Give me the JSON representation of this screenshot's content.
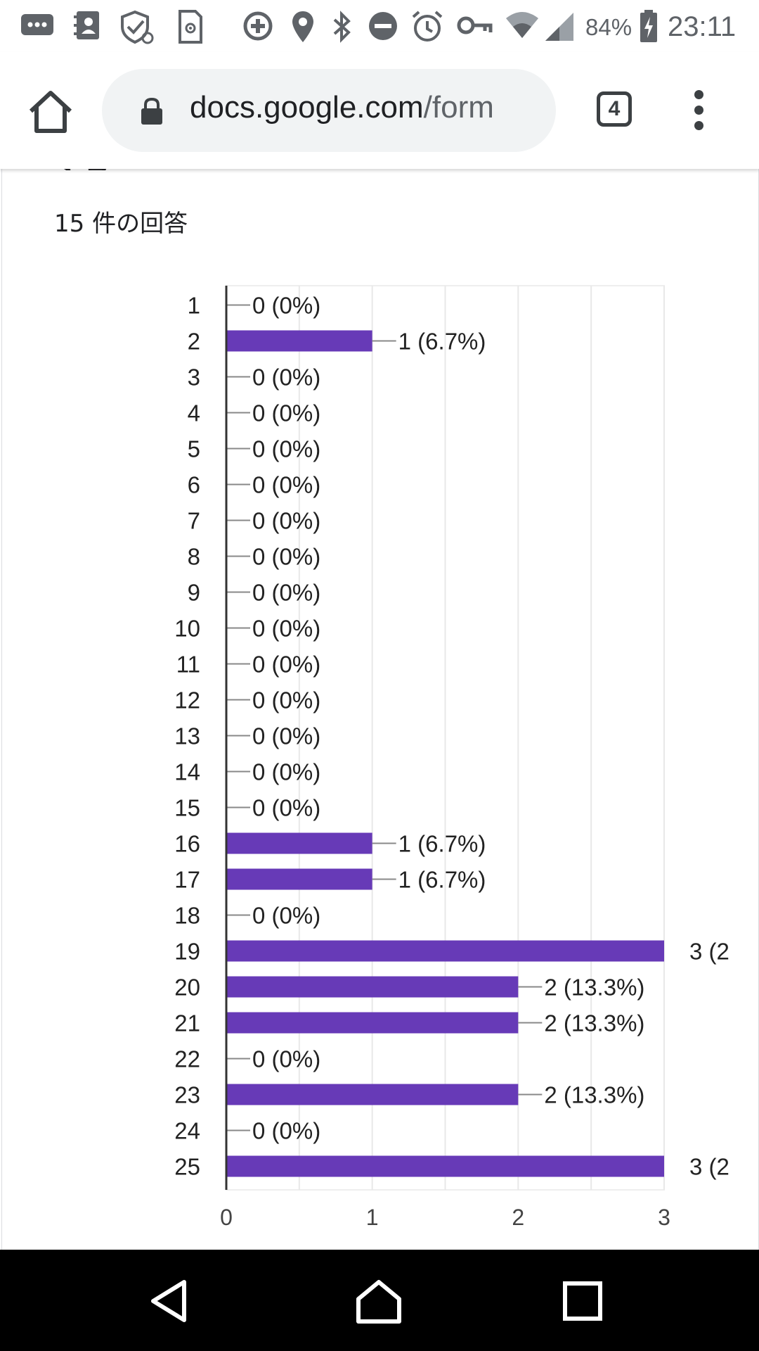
{
  "status_bar": {
    "battery": "84%",
    "time": "23:11",
    "icons": [
      "more-messages-icon",
      "contacts-icon",
      "shield-sync-icon",
      "sim-settings-icon",
      "data-saver-icon",
      "location-icon",
      "bluetooth-icon",
      "do-not-disturb-icon",
      "alarm-icon",
      "vpn-key-icon",
      "wifi-icon",
      "signal-icon",
      "battery-charging-icon"
    ]
  },
  "toolbar": {
    "url_domain": "docs.google.com",
    "url_path": "/form",
    "tab_count": "4"
  },
  "page": {
    "title_partial": "シス",
    "response_count": "15 件の回答"
  },
  "colors": {
    "bar": "#673ab7",
    "grid": "#e8e8e8",
    "axis": "#333333"
  },
  "chart_data": {
    "type": "bar",
    "orientation": "horizontal",
    "categories": [
      "1",
      "2",
      "3",
      "4",
      "5",
      "6",
      "7",
      "8",
      "9",
      "10",
      "11",
      "12",
      "13",
      "14",
      "15",
      "16",
      "17",
      "18",
      "19",
      "20",
      "21",
      "22",
      "23",
      "24",
      "25"
    ],
    "values": [
      0,
      1,
      0,
      0,
      0,
      0,
      0,
      0,
      0,
      0,
      0,
      0,
      0,
      0,
      0,
      1,
      1,
      0,
      3,
      2,
      2,
      0,
      2,
      0,
      3
    ],
    "labels": [
      "0 (0%)",
      "1 (6.7%)",
      "0 (0%)",
      "0 (0%)",
      "0 (0%)",
      "0 (0%)",
      "0 (0%)",
      "0 (0%)",
      "0 (0%)",
      "0 (0%)",
      "0 (0%)",
      "0 (0%)",
      "0 (0%)",
      "0 (0%)",
      "0 (0%)",
      "1 (6.7%)",
      "1 (6.7%)",
      "0 (0%)",
      "3 (2",
      "2 (13.3%)",
      "2 (13.3%)",
      "0 (0%)",
      "2 (13.3%)",
      "0 (0%)",
      "3 (2"
    ],
    "xticks": [
      "0",
      "1",
      "2",
      "3"
    ],
    "xlim": [
      0,
      3
    ],
    "grid": true
  }
}
